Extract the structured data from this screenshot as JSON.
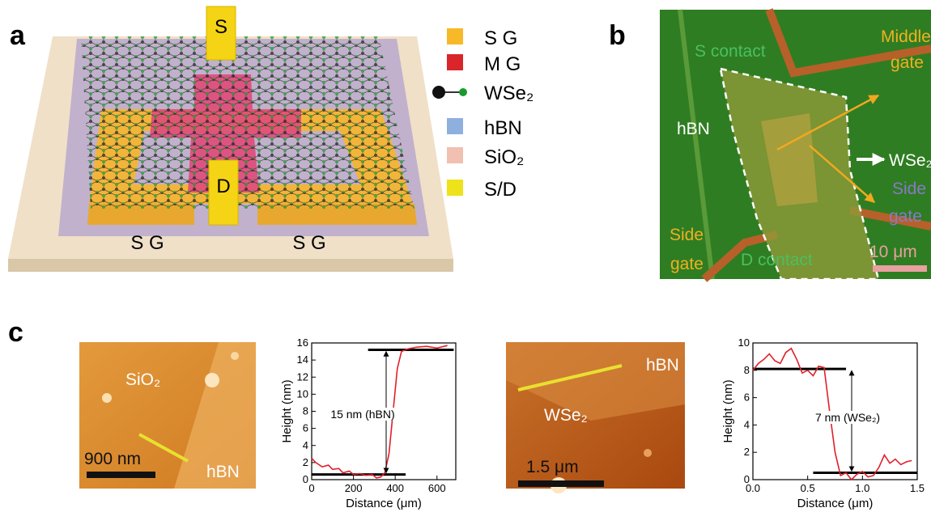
{
  "panel_a": {
    "label": "a",
    "top_contact": "S",
    "bottom_contact": "D",
    "side_gate_left": "S G",
    "side_gate_right": "S G",
    "legend": [
      {
        "name": "S G",
        "color": "#f7b928"
      },
      {
        "name": "M G",
        "color": "#d9262a"
      },
      {
        "name": "WSe₂",
        "color": "#1a9a2e"
      },
      {
        "name": "hBN",
        "color": "#8fb0de"
      },
      {
        "name": "SiO₂",
        "color": "#f1c0b0"
      },
      {
        "name": "S/D",
        "color": "#eee21a"
      }
    ]
  },
  "panel_b": {
    "label": "b",
    "s_contact": "S contact",
    "middle_gate": [
      "Middle",
      "gate"
    ],
    "hbn": "hBN",
    "wse2": "WSe₂",
    "side_gate_right": [
      "Side",
      "gate"
    ],
    "side_gate_left": [
      "Side",
      "gate"
    ],
    "d_contact": "D contact",
    "scale_bar": "10 μm"
  },
  "panel_c": {
    "label": "c",
    "image_1": {
      "material_top": "SiO₂",
      "material_bottom": "hBN",
      "scale_bar": "900 nm"
    },
    "image_2": {
      "material_top": "hBN",
      "material_bottom": "WSe₂",
      "scale_bar": "1.5 μm"
    }
  },
  "chart_data": [
    {
      "type": "line",
      "x_label": "Distance (μm)",
      "y_label": "Height (nm)",
      "annotation": "15 nm (hBN)",
      "xlim": [
        0,
        690
      ],
      "xticks": [
        0,
        200,
        400,
        600
      ],
      "ylim": [
        0,
        16
      ],
      "yticks": [
        0,
        2,
        4,
        6,
        8,
        10,
        12,
        14,
        16
      ],
      "x": [
        0,
        20,
        50,
        80,
        100,
        130,
        150,
        180,
        200,
        230,
        260,
        290,
        310,
        330,
        350,
        370,
        390,
        410,
        430,
        460,
        500,
        550,
        600,
        650
      ],
      "series": [
        {
          "color": "#e0202a",
          "values": [
            2.5,
            2,
            1.5,
            1.7,
            1.2,
            1.3,
            0.8,
            1,
            0.6,
            0.7,
            0.5,
            0.6,
            0.2,
            0.3,
            0.8,
            3,
            8,
            13,
            15,
            15.3,
            15.5,
            15.6,
            15.4,
            15.7
          ]
        }
      ],
      "reference_lines": [
        {
          "y": 15.2,
          "x": [
            270,
            680
          ]
        },
        {
          "y": 0.6,
          "x": [
            0,
            450
          ]
        }
      ]
    },
    {
      "type": "line",
      "x_label": "Distance (μm)",
      "y_label": "Height (nm)",
      "annotation": "7 nm (WSe₂)",
      "xlim": [
        0,
        1.5
      ],
      "xticks": [
        {
          "value": 0,
          "label": "0.0"
        },
        0.5,
        {
          "value": 1,
          "label": "1.0"
        },
        1.5
      ],
      "ylim": [
        0,
        10
      ],
      "yticks": [
        0,
        2,
        4,
        6,
        8,
        10
      ],
      "x": [
        0,
        0.05,
        0.1,
        0.15,
        0.2,
        0.25,
        0.3,
        0.35,
        0.4,
        0.45,
        0.5,
        0.55,
        0.6,
        0.65,
        0.7,
        0.75,
        0.8,
        0.85,
        0.9,
        0.95,
        1,
        1.05,
        1.1,
        1.15,
        1.2,
        1.25,
        1.3,
        1.35,
        1.4,
        1.45
      ],
      "series": [
        {
          "color": "#e0202a",
          "values": [
            8,
            8.5,
            8.8,
            9.2,
            8.7,
            8.5,
            9.3,
            9.6,
            8.8,
            7.8,
            8,
            7.6,
            8.3,
            8.2,
            5,
            2,
            0.3,
            0.5,
            0,
            0.4,
            0.6,
            0.2,
            0.3,
            0.9,
            1.8,
            1.2,
            1.5,
            1.1,
            1.3,
            1.4
          ]
        }
      ],
      "reference_lines": [
        {
          "y": 8.1,
          "x": [
            0,
            0.85
          ]
        },
        {
          "y": 0.5,
          "x": [
            0.55,
            1.5
          ]
        }
      ]
    }
  ]
}
